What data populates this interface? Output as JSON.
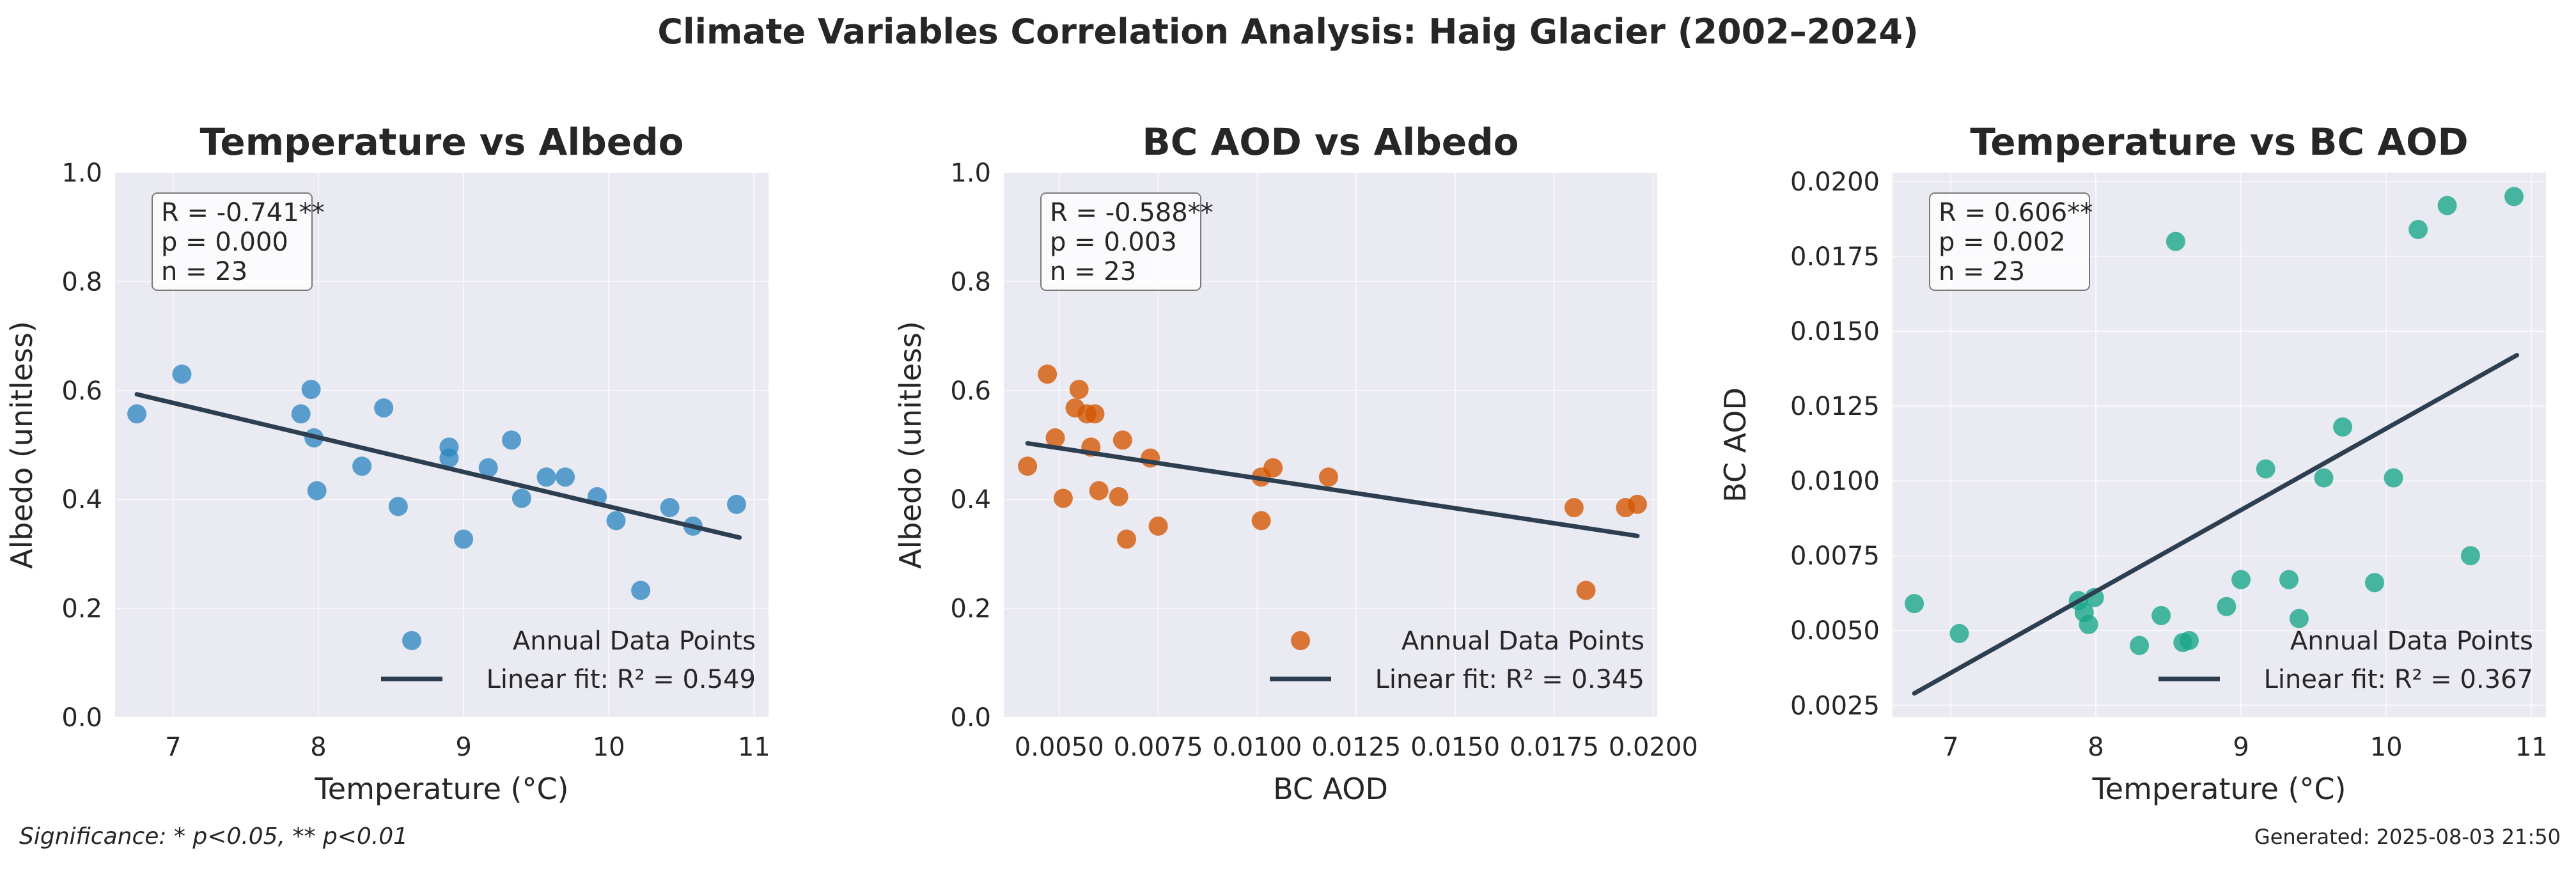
{
  "suptitle": "Climate Variables Correlation Analysis: Haig Glacier (2002–2024)",
  "footer": {
    "significance": "Significance: * p<0.05, ** p<0.01",
    "generated": "Generated: 2025-08-03 21:50"
  },
  "colors": {
    "panel_bg": "#eaeaf2",
    "grid": "#ffffff",
    "fit_line": "#2c3e50",
    "series_blue": "#2e86c1",
    "series_orange": "#d35400",
    "series_green": "#17a589"
  },
  "chart_data": [
    {
      "type": "scatter",
      "title": "Temperature vs Albedo",
      "xlabel": "Temperature (°C)",
      "ylabel": "Albedo (unitless)",
      "xlim": [
        6.6,
        11.1
      ],
      "ylim": [
        0.0,
        1.0
      ],
      "xticks": [
        7,
        8,
        9,
        10,
        11
      ],
      "xtick_labels": [
        "7",
        "8",
        "9",
        "10",
        "11"
      ],
      "yticks": [
        0.0,
        0.2,
        0.4,
        0.6,
        0.8,
        1.0
      ],
      "ytick_labels": [
        "0.0",
        "0.2",
        "0.4",
        "0.6",
        "0.8",
        "1.0"
      ],
      "color": "#2e86c1",
      "stats": [
        "R = -0.741**",
        "p = 0.000",
        "n = 23"
      ],
      "legend": {
        "points": "Annual Data Points",
        "fit": "Linear fit: R² = 0.549"
      },
      "fit": {
        "x": [
          6.75,
          10.9
        ],
        "y": [
          0.593,
          0.33
        ]
      },
      "points": {
        "x": [
          6.75,
          7.06,
          7.88,
          7.95,
          7.97,
          7.99,
          8.3,
          8.45,
          8.55,
          8.9,
          8.9,
          9.0,
          9.17,
          9.33,
          9.4,
          9.57,
          9.7,
          9.92,
          10.05,
          10.22,
          10.42,
          10.58,
          10.88
        ],
        "y": [
          0.557,
          0.63,
          0.557,
          0.602,
          0.513,
          0.416,
          0.461,
          0.568,
          0.387,
          0.496,
          0.476,
          0.327,
          0.458,
          0.509,
          0.402,
          0.441,
          0.441,
          0.405,
          0.361,
          0.233,
          0.385,
          0.351,
          0.391
        ]
      }
    },
    {
      "type": "scatter",
      "title": "BC AOD vs Albedo",
      "xlabel": "BC AOD",
      "ylabel": "Albedo (unitless)",
      "xlim": [
        0.0036,
        0.0201
      ],
      "ylim": [
        0.0,
        1.0
      ],
      "xticks": [
        0.005,
        0.0075,
        0.01,
        0.0125,
        0.015,
        0.0175,
        0.02
      ],
      "xtick_labels": [
        "0.0050",
        "0.0075",
        "0.0100",
        "0.0125",
        "0.0150",
        "0.0175",
        "0.0200"
      ],
      "yticks": [
        0.0,
        0.2,
        0.4,
        0.6,
        0.8,
        1.0
      ],
      "ytick_labels": [
        "0.0",
        "0.2",
        "0.4",
        "0.6",
        "0.8",
        "1.0"
      ],
      "color": "#d35400",
      "stats": [
        "R = -0.588**",
        "p = 0.003",
        "n = 23"
      ],
      "legend": {
        "points": "Annual Data Points",
        "fit": "Linear fit: R² = 0.345"
      },
      "fit": {
        "x": [
          0.0042,
          0.0196
        ],
        "y": [
          0.503,
          0.333
        ]
      },
      "points": {
        "x": [
          0.0042,
          0.0047,
          0.0049,
          0.0051,
          0.0054,
          0.0055,
          0.0057,
          0.0058,
          0.0059,
          0.006,
          0.0065,
          0.0066,
          0.0067,
          0.0073,
          0.0075,
          0.0101,
          0.0101,
          0.0104,
          0.0118,
          0.018,
          0.0183,
          0.0193,
          0.0196
        ],
        "y": [
          0.461,
          0.63,
          0.513,
          0.402,
          0.568,
          0.602,
          0.557,
          0.496,
          0.557,
          0.416,
          0.405,
          0.509,
          0.327,
          0.476,
          0.351,
          0.441,
          0.361,
          0.458,
          0.441,
          0.385,
          0.233,
          0.385,
          0.391
        ]
      }
    },
    {
      "type": "scatter",
      "title": "Temperature vs BC AOD",
      "xlabel": "Temperature (°C)",
      "ylabel": "BC AOD",
      "xlim": [
        6.6,
        11.1
      ],
      "ylim": [
        0.0021,
        0.0203
      ],
      "xticks": [
        7,
        8,
        9,
        10,
        11
      ],
      "xtick_labels": [
        "7",
        "8",
        "9",
        "10",
        "11"
      ],
      "yticks": [
        0.0025,
        0.005,
        0.0075,
        0.01,
        0.0125,
        0.015,
        0.0175,
        0.02
      ],
      "ytick_labels": [
        "0.0025",
        "0.0050",
        "0.0075",
        "0.0100",
        "0.0125",
        "0.0150",
        "0.0175",
        "0.0200"
      ],
      "color": "#17a589",
      "stats": [
        "R = 0.606**",
        "p = 0.002",
        "n = 23"
      ],
      "legend": {
        "points": "Annual Data Points",
        "fit": "Linear fit: R² = 0.367"
      },
      "fit": {
        "x": [
          6.75,
          10.9
        ],
        "y": [
          0.0029,
          0.0142
        ]
      },
      "points": {
        "x": [
          6.75,
          7.06,
          7.88,
          7.92,
          7.95,
          7.99,
          8.3,
          8.45,
          8.55,
          8.6,
          8.9,
          9.0,
          9.17,
          9.33,
          9.4,
          9.57,
          9.7,
          9.92,
          10.05,
          10.22,
          10.42,
          10.58,
          10.88
        ],
        "y": [
          0.0059,
          0.0049,
          0.006,
          0.0056,
          0.0052,
          0.0061,
          0.0045,
          0.0055,
          0.018,
          0.0046,
          0.0058,
          0.0067,
          0.0104,
          0.0067,
          0.0054,
          0.0101,
          0.0118,
          0.0066,
          0.0101,
          0.0184,
          0.0192,
          0.0075,
          0.0195
        ]
      }
    }
  ]
}
